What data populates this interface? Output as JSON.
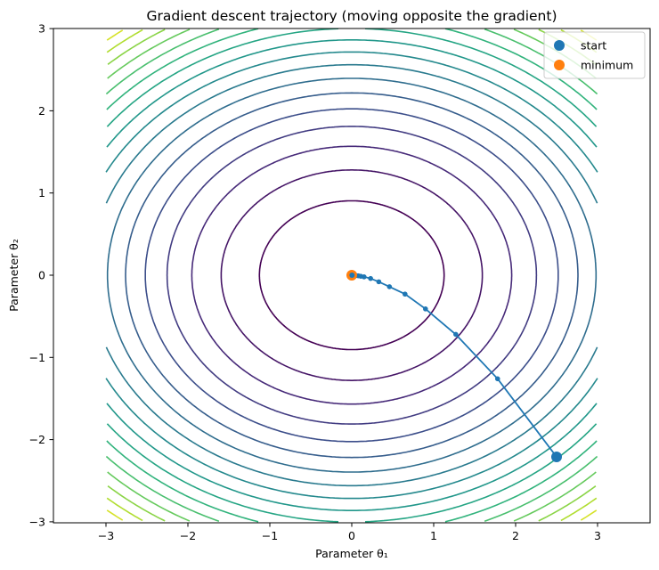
{
  "chart_data": {
    "type": "contour+line",
    "title": "Gradient descent trajectory (moving opposite the gradient)",
    "xlabel": "Parameter θ₁",
    "ylabel": "Parameter θ₂",
    "xlim": [
      -3.65,
      3.65
    ],
    "ylim": [
      -3,
      3
    ],
    "xticks": [
      -3,
      -2,
      -1,
      0,
      1,
      2,
      3
    ],
    "yticks": [
      -3,
      -2,
      -1,
      0,
      1,
      2,
      3
    ],
    "xtick_labels": [
      "−3",
      "−2",
      "−1",
      "0",
      "1",
      "2",
      "3"
    ],
    "ytick_labels": [
      "−3",
      "−2",
      "−1",
      "0",
      "1",
      "2",
      "3"
    ],
    "grid": false,
    "contour": {
      "function": "f(θ1, θ2) = θ1² + 1.55·θ2²",
      "domain": {
        "x": [
          -3,
          3
        ],
        "y": [
          -3,
          3
        ]
      },
      "levels": [
        1.27,
        2.54,
        3.81,
        5.08,
        6.35,
        7.62,
        8.89,
        10.16,
        11.43,
        12.7,
        13.97,
        15.24,
        16.51,
        17.78,
        19.05,
        20.32,
        21.59,
        22.86
      ],
      "colormap": "viridis"
    },
    "trajectory": {
      "color": "#1f77b4",
      "points": [
        [
          2.5,
          -2.21
        ],
        [
          1.78,
          -1.26
        ],
        [
          1.27,
          -0.72
        ],
        [
          0.9,
          -0.41
        ],
        [
          0.65,
          -0.23
        ],
        [
          0.46,
          -0.14
        ],
        [
          0.33,
          -0.08
        ],
        [
          0.23,
          -0.04
        ],
        [
          0.15,
          -0.02
        ],
        [
          0.11,
          -0.013
        ],
        [
          0.08,
          -0.007
        ],
        [
          0.055,
          -0.004
        ],
        [
          0.04,
          -0.002
        ],
        [
          0.028,
          -0.001
        ],
        [
          0.02,
          -0.0007
        ],
        [
          0.014,
          -0.0004
        ],
        [
          0.01,
          -0.0002
        ],
        [
          0.007,
          0.0
        ],
        [
          0.005,
          0.0
        ],
        [
          0.003,
          0.0
        ]
      ]
    },
    "markers": [
      {
        "name": "start",
        "x": 2.5,
        "y": -2.21,
        "color": "#1f77b4"
      },
      {
        "name": "minimum",
        "x": 0.0,
        "y": 0.0,
        "color": "#ff7f0e"
      }
    ],
    "legend": {
      "position": "upper right",
      "entries": [
        {
          "label": "start",
          "color": "#1f77b4"
        },
        {
          "label": "minimum",
          "color": "#ff7f0e"
        }
      ]
    }
  }
}
